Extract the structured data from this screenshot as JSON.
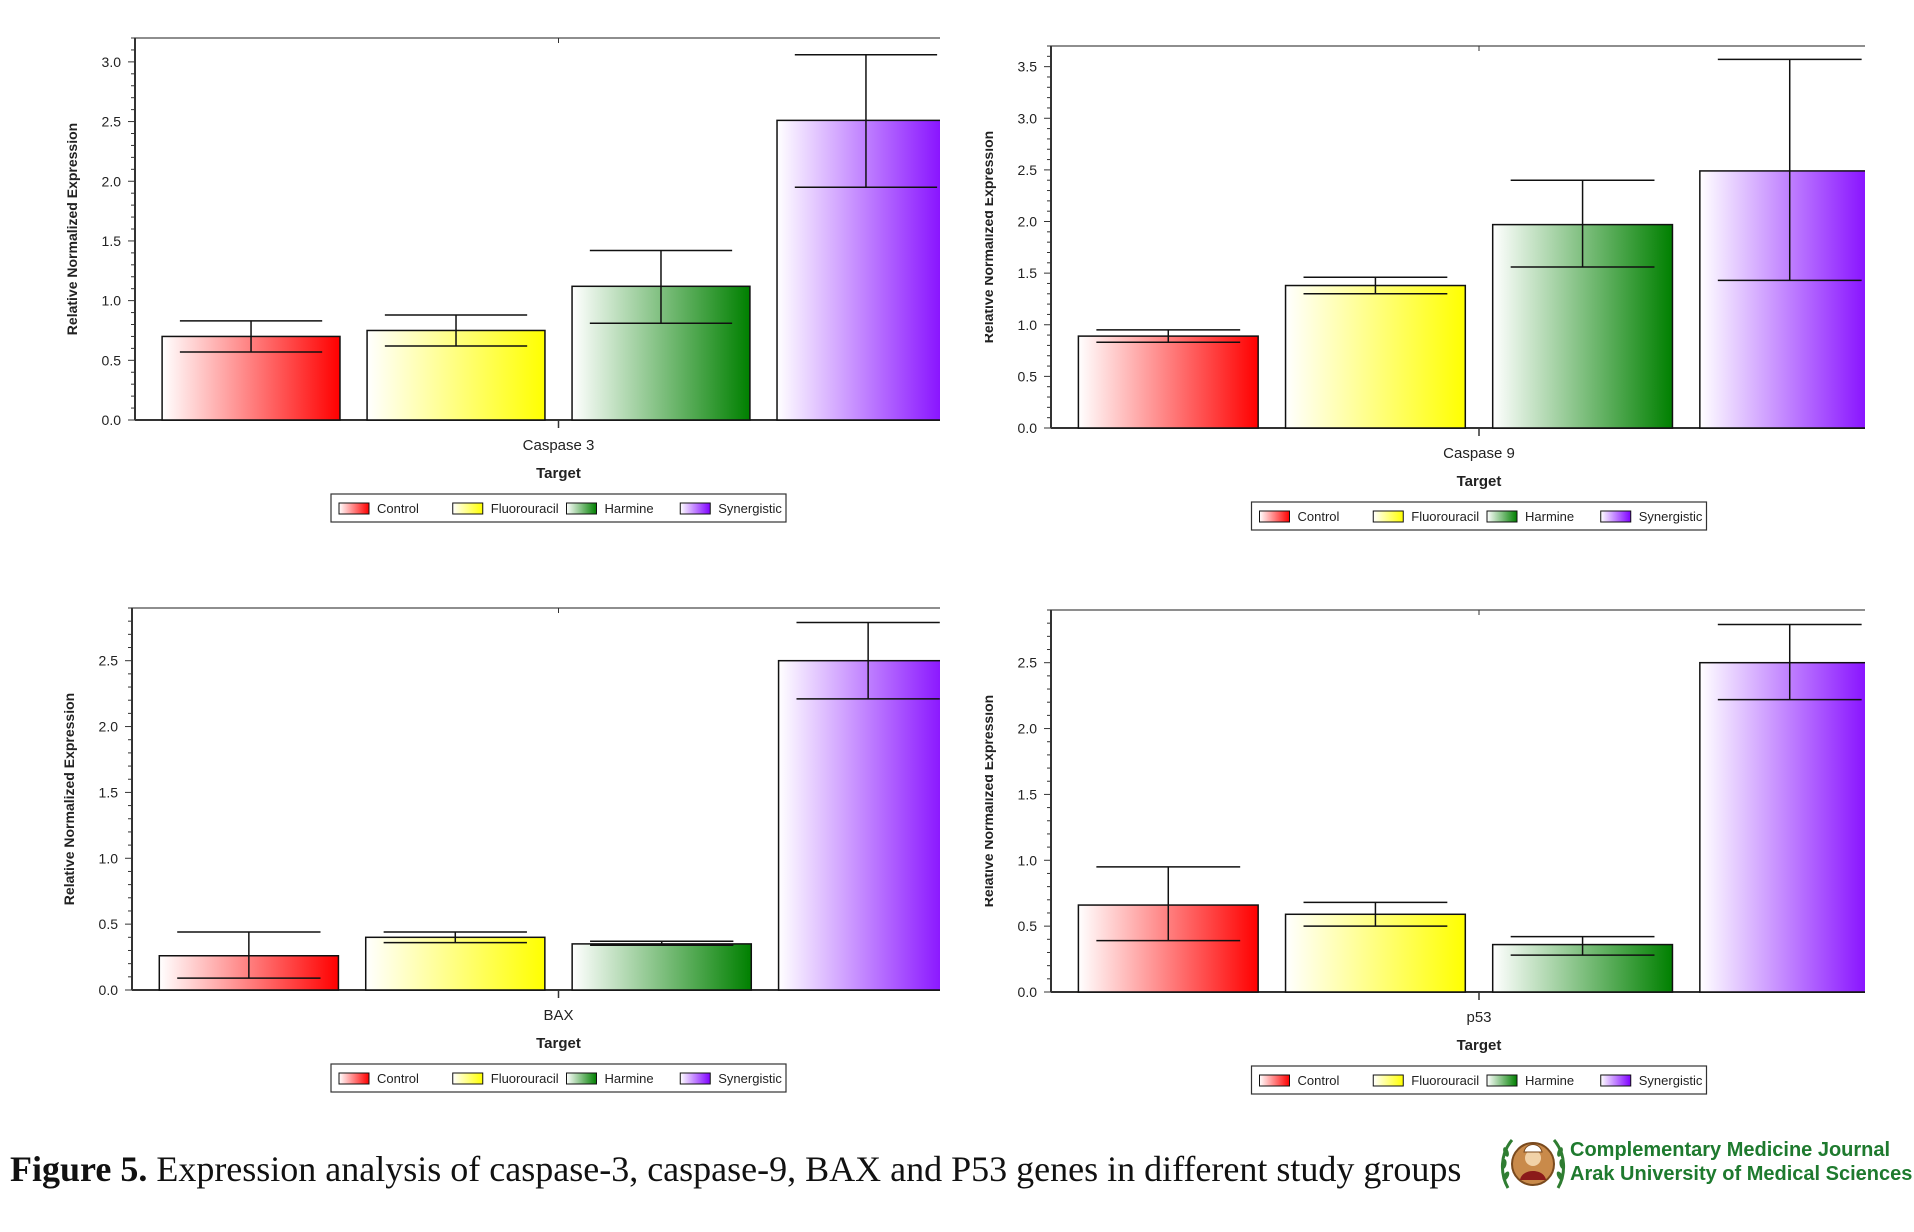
{
  "figure": {
    "label": "Figure 5.",
    "text": " Expression analysis of caspase-3, caspase-9, BAX and P53 genes in different study groups"
  },
  "journal": {
    "line1": "Complementary Medicine Journal",
    "line2": "Arak University of Medical Sciences"
  },
  "legend": [
    {
      "name": "Control",
      "color": "#ff0000"
    },
    {
      "name": "Fluorouracil",
      "color": "#ffff00"
    },
    {
      "name": "Harmine",
      "color": "#008000"
    },
    {
      "name": "Synergistic",
      "color": "#7f00ff"
    }
  ],
  "chart_data": [
    {
      "type": "bar",
      "category": "Caspase 3",
      "xlabel": "Target",
      "ylabel": "Relative Normalized Expression",
      "ylim": [
        0,
        3.2
      ],
      "yticks": [
        "0.0",
        "0.5",
        "1.0",
        "1.5",
        "2.0",
        "2.5",
        "3.0"
      ],
      "series": [
        {
          "name": "Control",
          "value": 0.7,
          "err_low": 0.57,
          "err_high": 0.83
        },
        {
          "name": "Fluorouracil",
          "value": 0.75,
          "err_low": 0.62,
          "err_high": 0.88
        },
        {
          "name": "Harmine",
          "value": 1.12,
          "err_low": 0.81,
          "err_high": 1.42
        },
        {
          "name": "Synergistic",
          "value": 2.51,
          "err_low": 1.95,
          "err_high": 3.06
        }
      ]
    },
    {
      "type": "bar",
      "category": "Caspase 9",
      "xlabel": "Target",
      "ylabel": "Relative Normalized Expression",
      "ylim": [
        0,
        3.7
      ],
      "yticks": [
        "0.0",
        "0.5",
        "1.0",
        "1.5",
        "2.0",
        "2.5",
        "3.0",
        "3.5"
      ],
      "series": [
        {
          "name": "Control",
          "value": 0.89,
          "err_low": 0.83,
          "err_high": 0.95
        },
        {
          "name": "Fluorouracil",
          "value": 1.38,
          "err_low": 1.3,
          "err_high": 1.46
        },
        {
          "name": "Harmine",
          "value": 1.97,
          "err_low": 1.56,
          "err_high": 2.4
        },
        {
          "name": "Synergistic",
          "value": 2.49,
          "err_low": 1.43,
          "err_high": 3.57
        }
      ]
    },
    {
      "type": "bar",
      "category": "BAX",
      "xlabel": "Target",
      "ylabel": "Relative Normalized Expression",
      "ylim": [
        0,
        2.9
      ],
      "yticks": [
        "0.0",
        "0.5",
        "1.0",
        "1.5",
        "2.0",
        "2.5"
      ],
      "series": [
        {
          "name": "Control",
          "value": 0.26,
          "err_low": 0.09,
          "err_high": 0.44
        },
        {
          "name": "Fluorouracil",
          "value": 0.4,
          "err_low": 0.36,
          "err_high": 0.44
        },
        {
          "name": "Harmine",
          "value": 0.35,
          "err_low": 0.34,
          "err_high": 0.37
        },
        {
          "name": "Synergistic",
          "value": 2.5,
          "err_low": 2.21,
          "err_high": 2.79
        }
      ]
    },
    {
      "type": "bar",
      "category": "p53",
      "xlabel": "Target",
      "ylabel": "Relative Normalized Expression",
      "ylim": [
        0,
        2.9
      ],
      "yticks": [
        "0.0",
        "0.5",
        "1.0",
        "1.5",
        "2.0",
        "2.5"
      ],
      "series": [
        {
          "name": "Control",
          "value": 0.66,
          "err_low": 0.39,
          "err_high": 0.95
        },
        {
          "name": "Fluorouracil",
          "value": 0.59,
          "err_low": 0.5,
          "err_high": 0.68
        },
        {
          "name": "Harmine",
          "value": 0.36,
          "err_low": 0.28,
          "err_high": 0.42
        },
        {
          "name": "Synergistic",
          "value": 2.5,
          "err_low": 2.22,
          "err_high": 2.79
        }
      ]
    }
  ]
}
